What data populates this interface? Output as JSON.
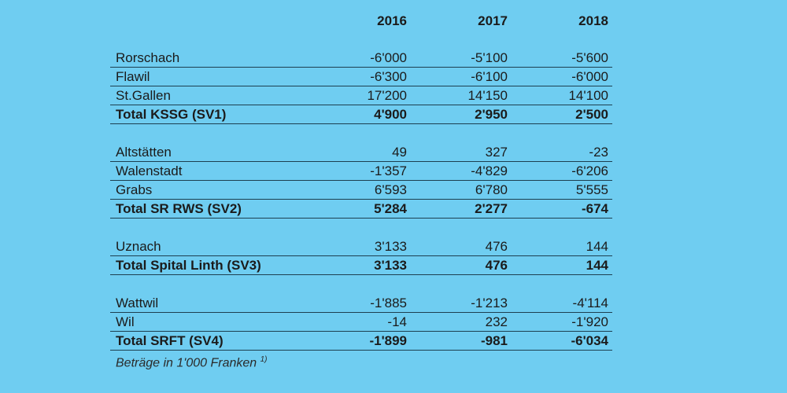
{
  "header": {
    "years": [
      "2016",
      "2017",
      "2018"
    ]
  },
  "groups": [
    {
      "rows": [
        {
          "label": "Rorschach",
          "values": [
            "-6'000",
            "-5'100",
            "-5'600"
          ]
        },
        {
          "label": "Flawil",
          "values": [
            "-6'300",
            "-6'100",
            "-6'000"
          ]
        },
        {
          "label": "St.Gallen",
          "values": [
            "17'200",
            "14'150",
            "14'100"
          ]
        }
      ],
      "total": {
        "label": "Total KSSG (SV1)",
        "values": [
          "4'900",
          "2'950",
          "2'500"
        ]
      }
    },
    {
      "rows": [
        {
          "label": "Altstätten",
          "values": [
            "49",
            "327",
            "-23"
          ]
        },
        {
          "label": "Walenstadt",
          "values": [
            "-1'357",
            "-4'829",
            "-6'206"
          ]
        },
        {
          "label": "Grabs",
          "values": [
            "6'593",
            "6'780",
            "5'555"
          ]
        }
      ],
      "total": {
        "label": "Total SR RWS (SV2)",
        "values": [
          "5'284",
          "2'277",
          "-674"
        ]
      }
    },
    {
      "rows": [
        {
          "label": "Uznach",
          "values": [
            "3'133",
            "476",
            "144"
          ]
        }
      ],
      "total": {
        "label": "Total Spital Linth (SV3)",
        "values": [
          "3'133",
          "476",
          "144"
        ]
      }
    },
    {
      "rows": [
        {
          "label": "Wattwil",
          "values": [
            "-1'885",
            "-1'213",
            "-4'114"
          ]
        },
        {
          "label": "Wil",
          "values": [
            "-14",
            "232",
            "-1'920"
          ]
        }
      ],
      "total": {
        "label": "Total SRFT (SV4)",
        "values": [
          "-1'899",
          "-981",
          "-6'034"
        ]
      }
    }
  ],
  "footnote": {
    "text": "Beträge in 1'000 Franken",
    "marker": "1)"
  }
}
